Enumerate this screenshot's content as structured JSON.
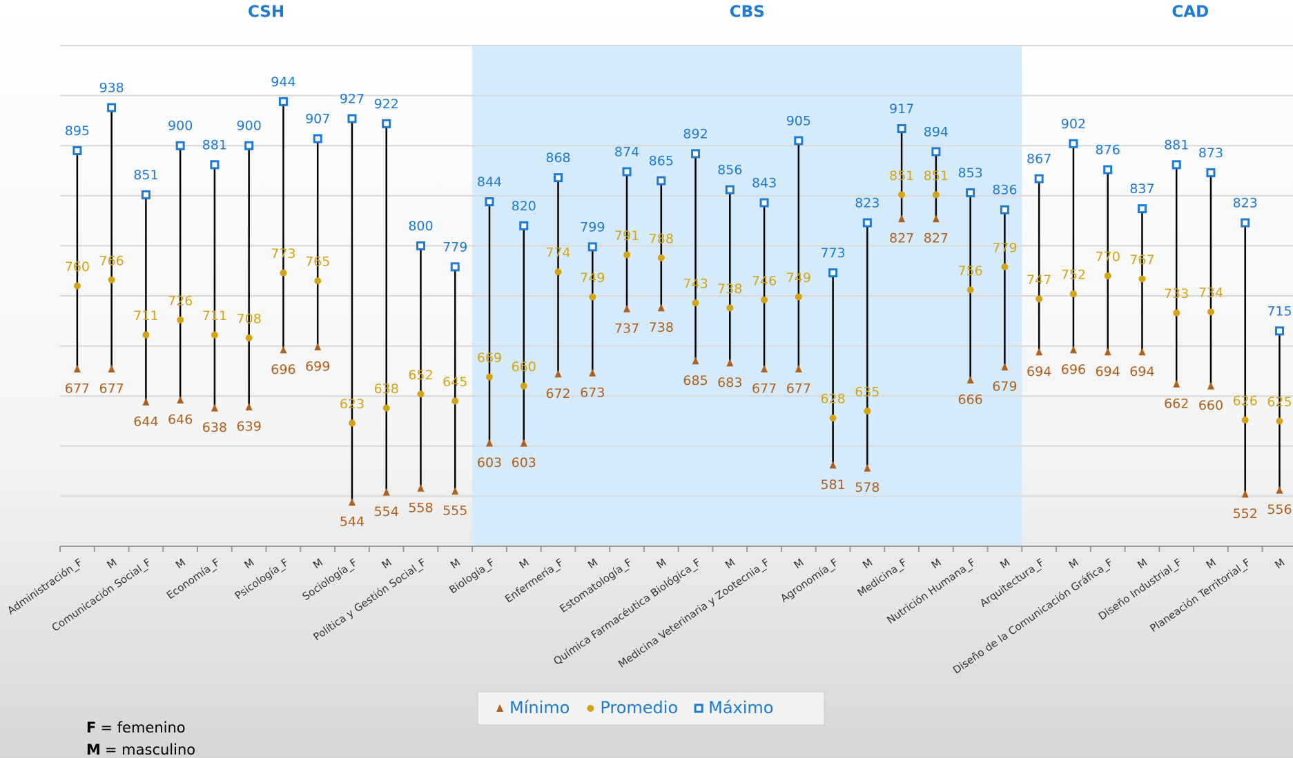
{
  "chart_data": {
    "type": "range",
    "groups": [
      {
        "label": "CSH",
        "size": 12
      },
      {
        "label": "CBS",
        "size": 16,
        "highlight": true
      },
      {
        "label": "CAD",
        "size": 8
      }
    ],
    "categories": [
      "Administración_F",
      "M",
      "Comunicación Social_F",
      "M",
      "Economía_F",
      "M",
      "Psicología_F",
      "M",
      "Sociología_F",
      "M",
      "Política y Gestión Social_F",
      "M",
      "Biología_F",
      "M",
      "Enfermería_F",
      "M",
      "Estomatología_F",
      "M",
      "Química Farmacéutica Biológica_F",
      "M",
      "Medicina Veterinaria y Zootecnia_F",
      "M",
      "Agronomía_F",
      "M",
      "Medicina_F",
      "M",
      "Nutrición Humana_F",
      "M",
      "Arquitectura_F",
      "M",
      "Diseño de la Comunicación Gráfica_F",
      "M",
      "Diseño Industrial_F",
      "M",
      "Planeación Territorial_F",
      "M"
    ],
    "series": [
      {
        "name": "Mínimo",
        "color": "#b0601e",
        "marker": "triangle",
        "values": [
          677,
          677,
          644,
          646,
          638,
          639,
          696,
          699,
          544,
          554,
          558,
          555,
          603,
          603,
          672,
          673,
          737,
          738,
          685,
          683,
          677,
          677,
          581,
          578,
          827,
          827,
          666,
          679,
          694,
          696,
          694,
          694,
          662,
          660,
          552,
          556
        ]
      },
      {
        "name": "Promedio",
        "color": "#d4a418",
        "marker": "circle",
        "values": [
          760,
          766,
          711,
          726,
          711,
          708,
          773,
          765,
          623,
          638,
          652,
          645,
          669,
          660,
          774,
          749,
          791,
          788,
          743,
          738,
          746,
          749,
          628,
          635,
          851,
          851,
          756,
          779,
          747,
          752,
          770,
          767,
          733,
          734,
          626,
          625
        ]
      },
      {
        "name": "Máximo",
        "color": "#1e7bd0",
        "marker": "square",
        "values": [
          895,
          938,
          851,
          900,
          881,
          900,
          944,
          907,
          927,
          922,
          800,
          779,
          844,
          820,
          868,
          799,
          874,
          865,
          892,
          856,
          843,
          905,
          773,
          823,
          917,
          894,
          853,
          836,
          867,
          902,
          876,
          837,
          881,
          873,
          823,
          715
        ]
      }
    ],
    "ylim": [
      500,
      1000
    ],
    "yticks": [
      500,
      550,
      600,
      650,
      700,
      750,
      800,
      850,
      900,
      950,
      1000
    ],
    "grid": true,
    "notes": [
      {
        "key": "F",
        "text": "= femenino"
      },
      {
        "key": "M",
        "text": "= masculino"
      }
    ]
  }
}
